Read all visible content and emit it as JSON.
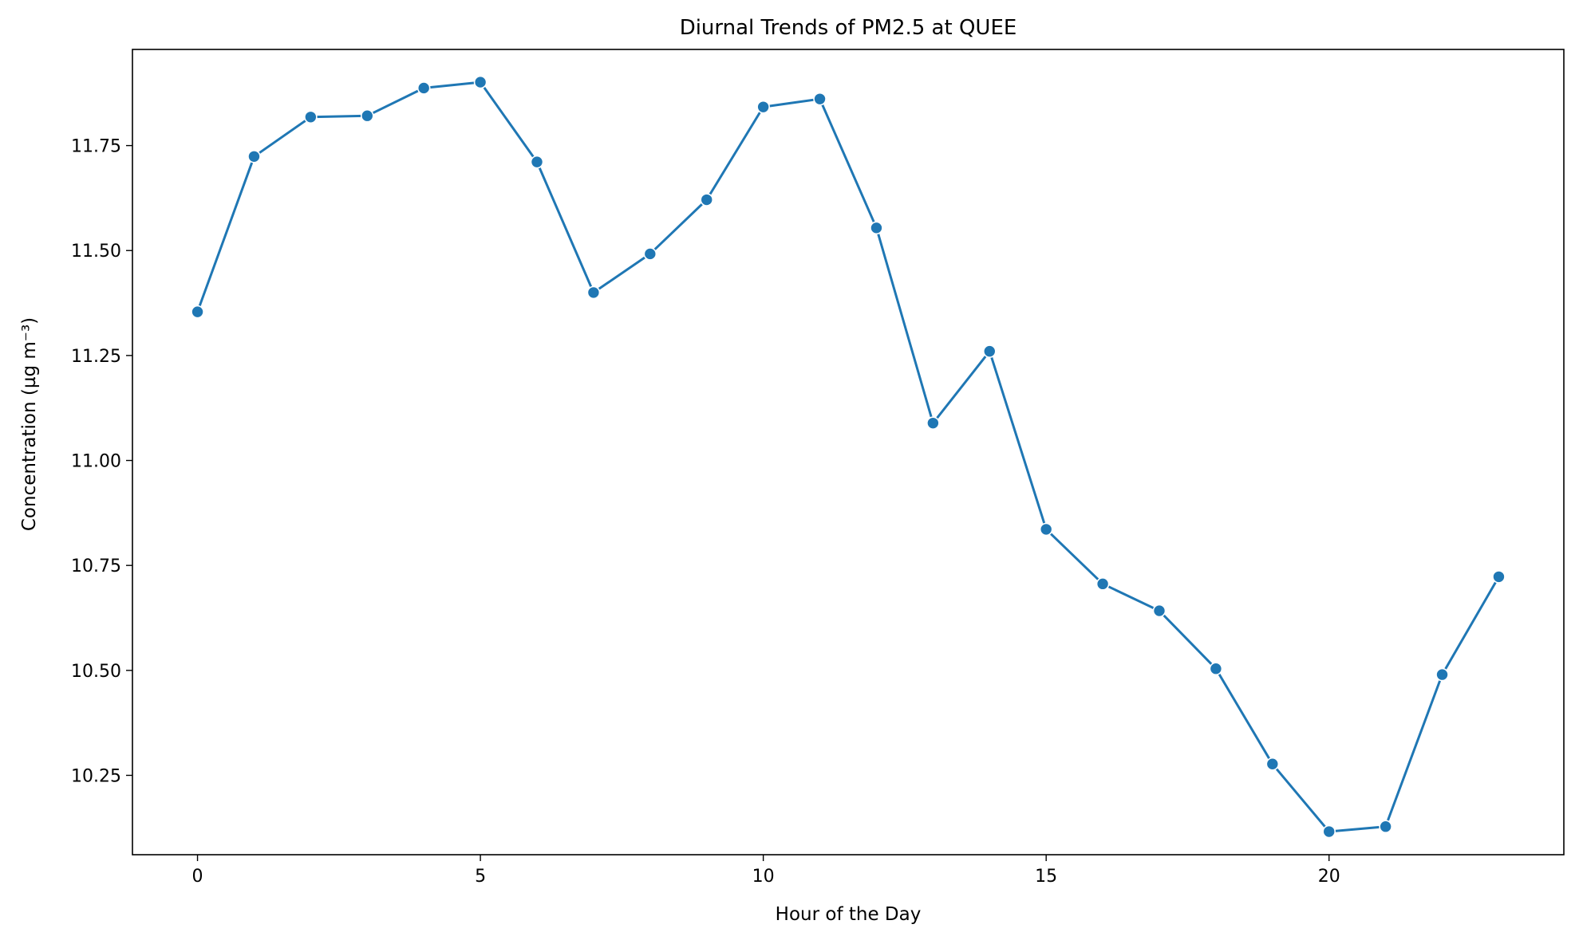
{
  "chart_data": {
    "type": "line",
    "title": "Diurnal Trends of PM2.5 at QUEE",
    "xlabel": "Hour of the Day",
    "ylabel": "Concentration (µg m⁻³)",
    "xlim": [
      -1.15,
      24.15
    ],
    "ylim": [
      10.061,
      11.979
    ],
    "xticks": [
      0,
      5,
      10,
      15,
      20
    ],
    "xtick_labels": [
      "0",
      "5",
      "10",
      "15",
      "20"
    ],
    "yticks": [
      10.25,
      10.5,
      10.75,
      11.0,
      11.25,
      11.5,
      11.75
    ],
    "ytick_labels": [
      "10.25",
      "10.50",
      "10.75",
      "11.00",
      "11.25",
      "11.50",
      "11.75"
    ],
    "grid": false,
    "marker": "circle",
    "series": [
      {
        "color": "#1f77b4",
        "x": [
          0,
          1,
          2,
          3,
          4,
          5,
          6,
          7,
          8,
          9,
          10,
          11,
          12,
          13,
          14,
          15,
          16,
          17,
          18,
          19,
          20,
          21,
          22,
          23
        ],
        "y": [
          11.354,
          11.724,
          11.818,
          11.821,
          11.887,
          11.901,
          11.711,
          11.4,
          11.492,
          11.621,
          11.842,
          11.861,
          11.554,
          11.089,
          11.26,
          10.836,
          10.706,
          10.642,
          10.504,
          10.277,
          10.116,
          10.128,
          10.49,
          10.723
        ]
      }
    ]
  }
}
